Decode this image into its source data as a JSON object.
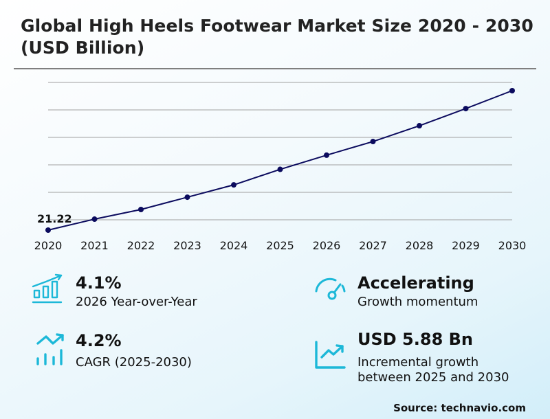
{
  "title": "Global High Heels Footwear Market Size 2020 - 2030 (USD Billion)",
  "colors": {
    "line": "#0b0b5e",
    "gridline": "#a0a0a0",
    "divider": "#7f7f7f",
    "icon_accent": "#1cb8d8",
    "bg_start": "#ffffff",
    "bg_end": "#d2eef9"
  },
  "chart_data": {
    "type": "line",
    "title": "Global High Heels Footwear Market Size 2020 - 2030 (USD Billion)",
    "xlabel": "",
    "ylabel": "USD Billion",
    "categories": [
      "2020",
      "2021",
      "2022",
      "2023",
      "2024",
      "2025",
      "2026",
      "2027",
      "2028",
      "2029",
      "2030"
    ],
    "series": [
      {
        "name": "Market Size",
        "values": [
          21.22,
          22.04,
          22.76,
          23.68,
          24.6,
          25.76,
          26.82,
          27.84,
          29.02,
          30.3,
          31.64
        ]
      }
    ],
    "annotations": [
      {
        "x": "2020",
        "text": "21.22"
      }
    ],
    "grid": true,
    "yaxis_labels_visible": false,
    "legend": "none"
  },
  "chart": {
    "start_label": "21.22",
    "x_labels": [
      "2020",
      "2021",
      "2022",
      "2023",
      "2024",
      "2025",
      "2026",
      "2027",
      "2028",
      "2029",
      "2030"
    ]
  },
  "stats": {
    "yoy": {
      "value": "4.1%",
      "label": "2026 Year-over-Year",
      "icon": "bar-chart-growth-icon"
    },
    "momentum": {
      "value": "Accelerating",
      "label": "Growth momentum",
      "icon": "speedometer-icon"
    },
    "cagr": {
      "value": "4.2%",
      "label": "CAGR (2025-2030)",
      "icon": "trend-bars-icon"
    },
    "incremental": {
      "value": "USD 5.88 Bn",
      "label_line1": "Incremental growth",
      "label_line2": "between 2025 and 2030",
      "icon": "line-chart-up-icon"
    }
  },
  "source": "Source: technavio.com"
}
